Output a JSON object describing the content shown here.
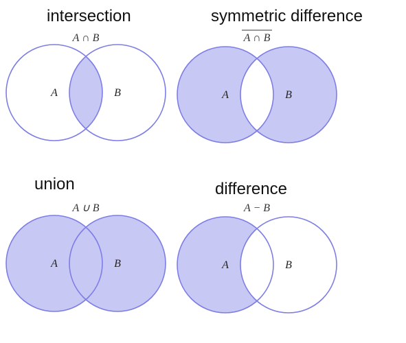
{
  "colors": {
    "fill": "#c8c8f5",
    "stroke": "#7d7de6",
    "background": "#ffffff"
  },
  "panels": [
    {
      "title": "intersection",
      "formula": "A ∩ B",
      "overline": false,
      "label_a": "A",
      "label_b": "B",
      "shaded": "A∩B"
    },
    {
      "title": "symmetric difference",
      "formula": "A ∩ B",
      "overline": true,
      "label_a": "A",
      "label_b": "B",
      "shaded": "A xor B"
    },
    {
      "title": "union",
      "formula": "A ∪ B",
      "overline": false,
      "label_a": "A",
      "label_b": "B",
      "shaded": "A∪B"
    },
    {
      "title": "difference",
      "formula": "A − B",
      "overline": false,
      "label_a": "A",
      "label_b": "B",
      "shaded": "A−B"
    }
  ]
}
